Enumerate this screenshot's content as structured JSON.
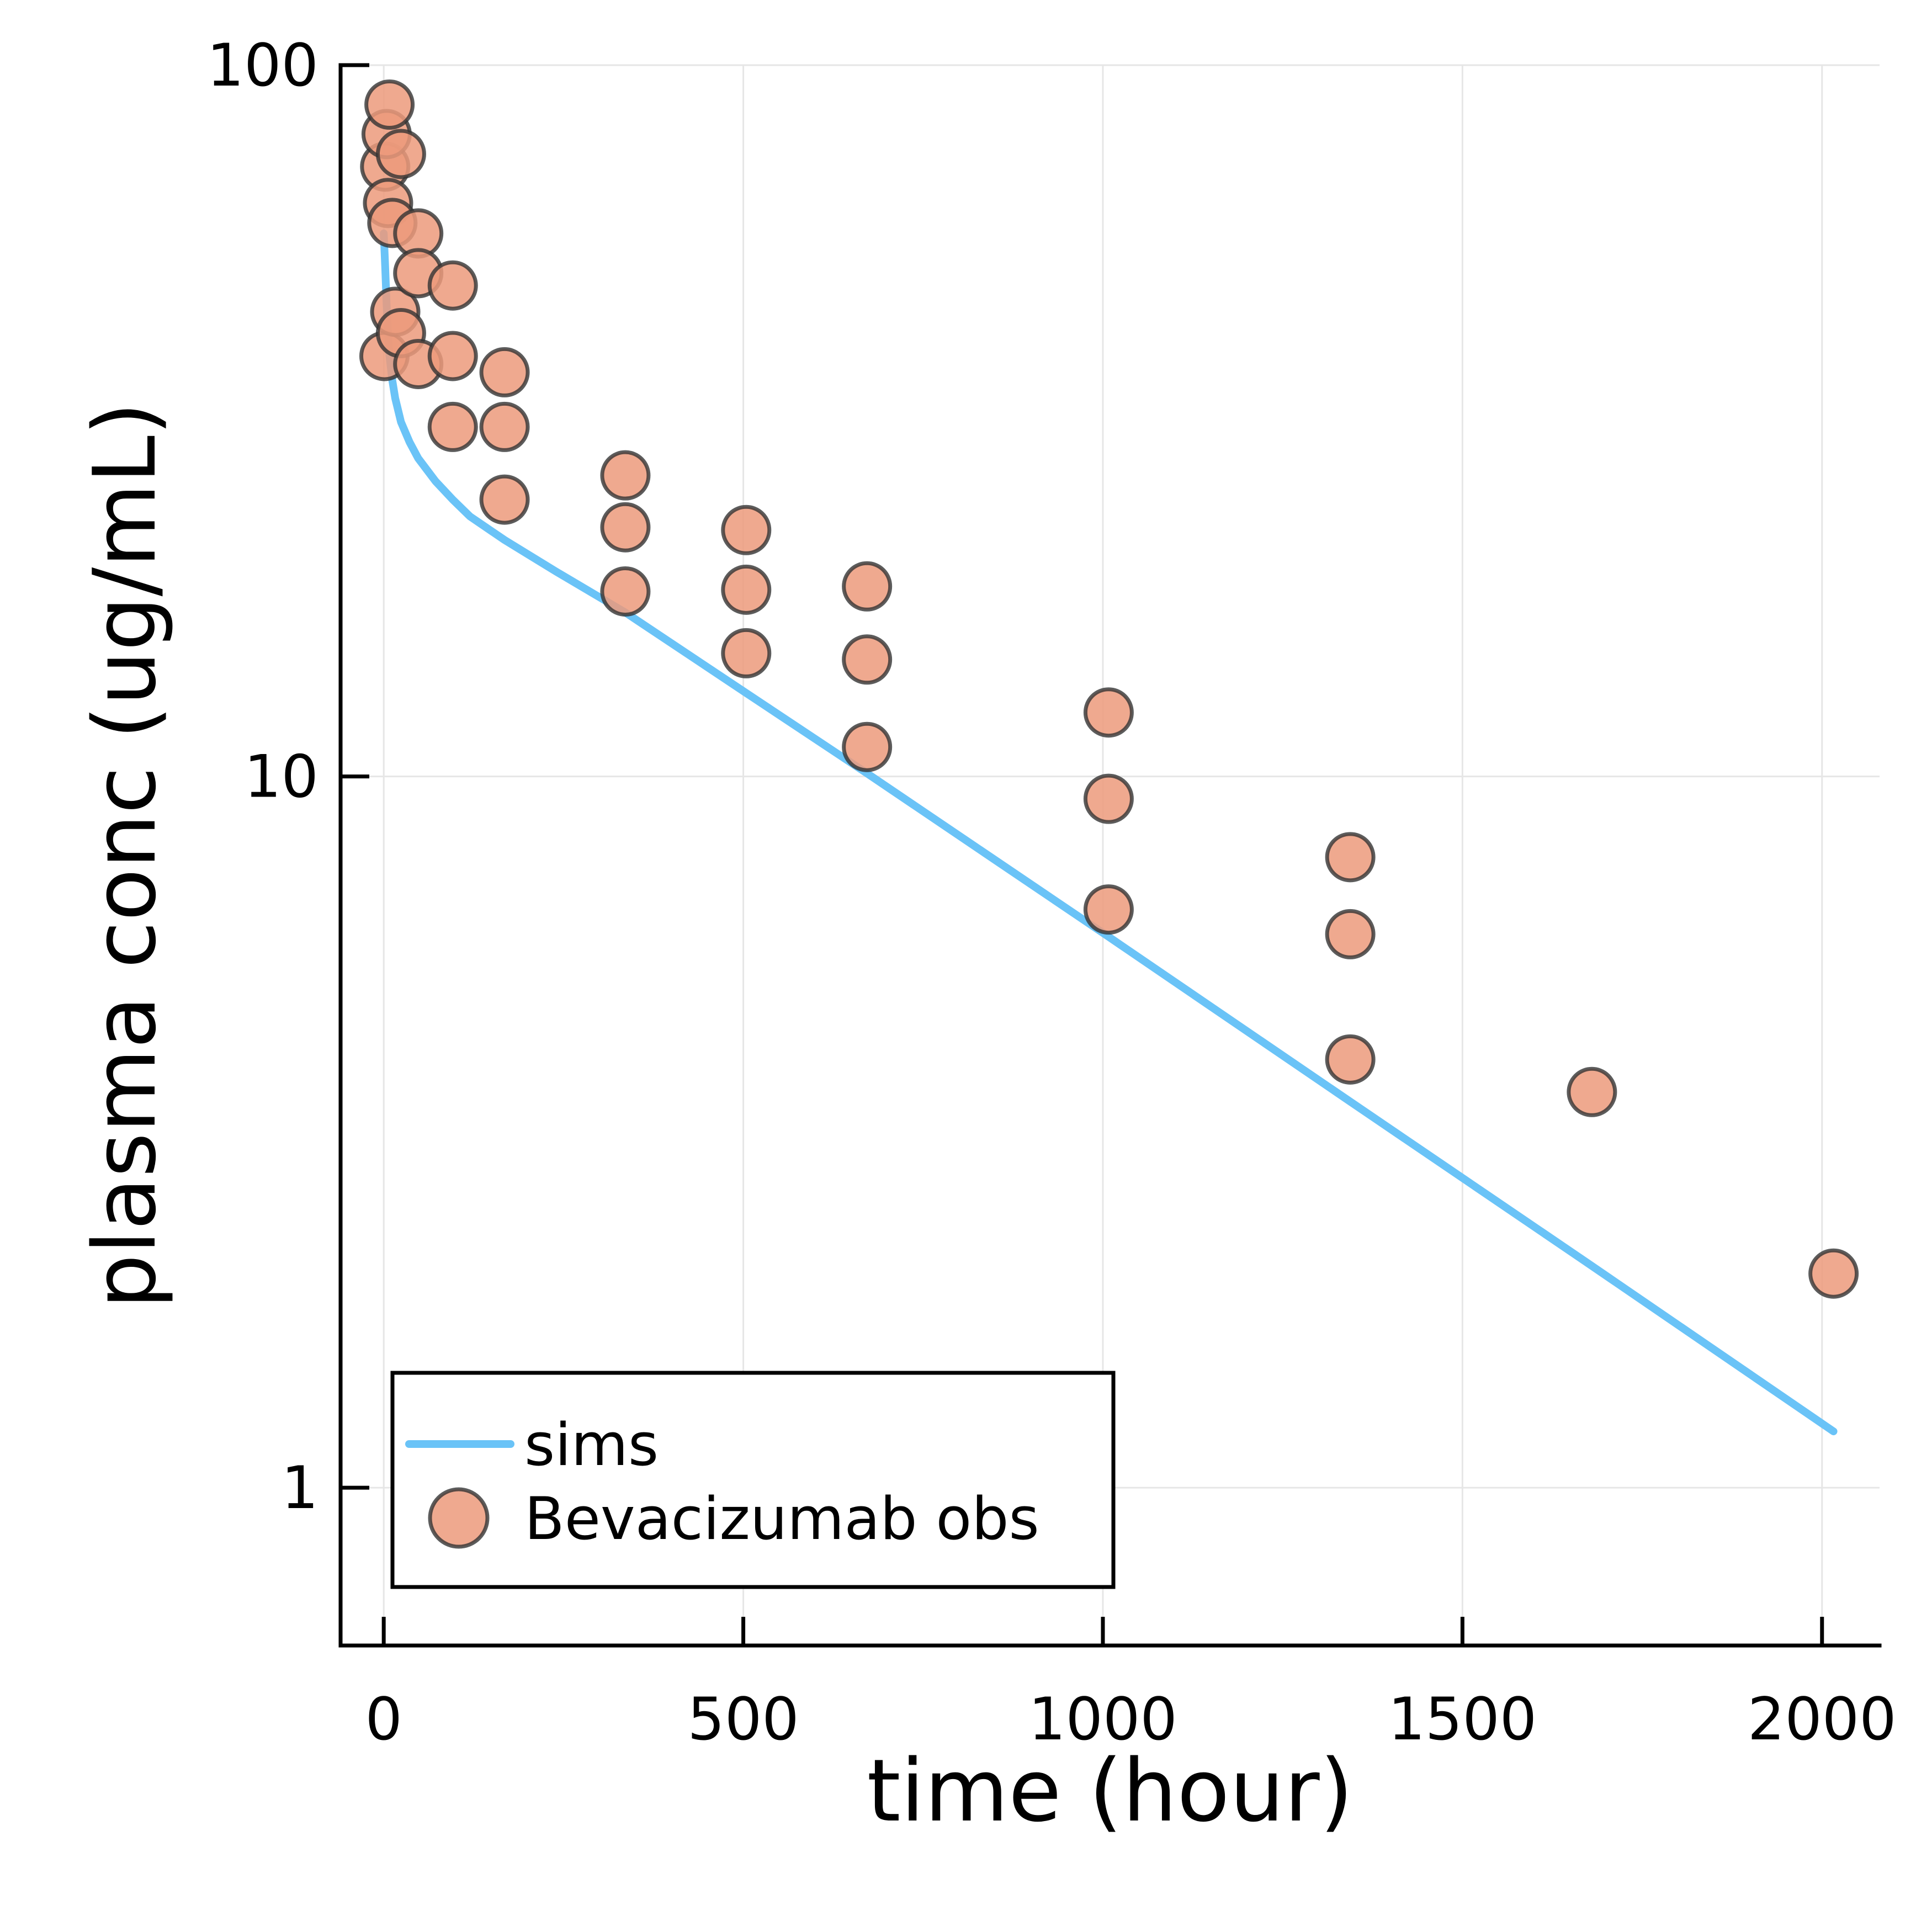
{
  "chart_data": {
    "type": "scatter",
    "title": "",
    "xlabel": "time (hour)",
    "ylabel": "plasma conc (ug/mL)",
    "xlim": [
      -60,
      2080
    ],
    "ylim": [
      0.6,
      100
    ],
    "yscale": "log",
    "grid": true,
    "legend_position": "bottom-left",
    "xticks": [
      {
        "value": 0,
        "label": "0"
      },
      {
        "value": 500,
        "label": "500"
      },
      {
        "value": 1000,
        "label": "1000"
      },
      {
        "value": 1500,
        "label": "1500"
      },
      {
        "value": 2000,
        "label": "2000"
      }
    ],
    "yticks": [
      {
        "value": 1,
        "label": "1"
      },
      {
        "value": 10,
        "label": "10"
      },
      {
        "value": 100,
        "label": "100"
      }
    ],
    "series": [
      {
        "name": "sims",
        "kind": "line",
        "color": "#6AC3F7",
        "x": [
          0,
          1,
          2,
          4,
          6,
          8,
          12,
          16,
          24,
          36,
          48,
          72,
          96,
          120,
          168,
          240,
          336,
          504,
          672,
          1008,
          1344,
          1680,
          2016
        ],
        "y": [
          58,
          55,
          52,
          46,
          42,
          39,
          36,
          34,
          31.5,
          29.5,
          28,
          26,
          24.5,
          23.2,
          21.5,
          19.4,
          17.0,
          13.1,
          10.1,
          5.95,
          3.49,
          2.05,
          1.2
        ]
      },
      {
        "name": "Bevacizumab obs",
        "kind": "scatter",
        "color": "#EC9A7B",
        "edge_color": "#333333",
        "x": [
          1,
          2,
          4,
          6,
          8,
          12,
          16,
          24,
          24,
          48,
          48,
          48,
          96,
          96,
          96,
          168,
          168,
          168,
          336,
          336,
          336,
          504,
          504,
          504,
          672,
          672,
          672,
          1008,
          1008,
          1008,
          1344,
          1344,
          1344,
          1680,
          2016
        ],
        "y": [
          39,
          72,
          80,
          64,
          88,
          60,
          45,
          42,
          75,
          58,
          51,
          38,
          49,
          39,
          31,
          37,
          31,
          24.5,
          26.5,
          22.4,
          18.2,
          22.2,
          18.3,
          14.9,
          18.5,
          14.6,
          11.0,
          12.3,
          9.3,
          6.5,
          7.7,
          6.0,
          4.0,
          3.6,
          2.0
        ]
      }
    ]
  }
}
